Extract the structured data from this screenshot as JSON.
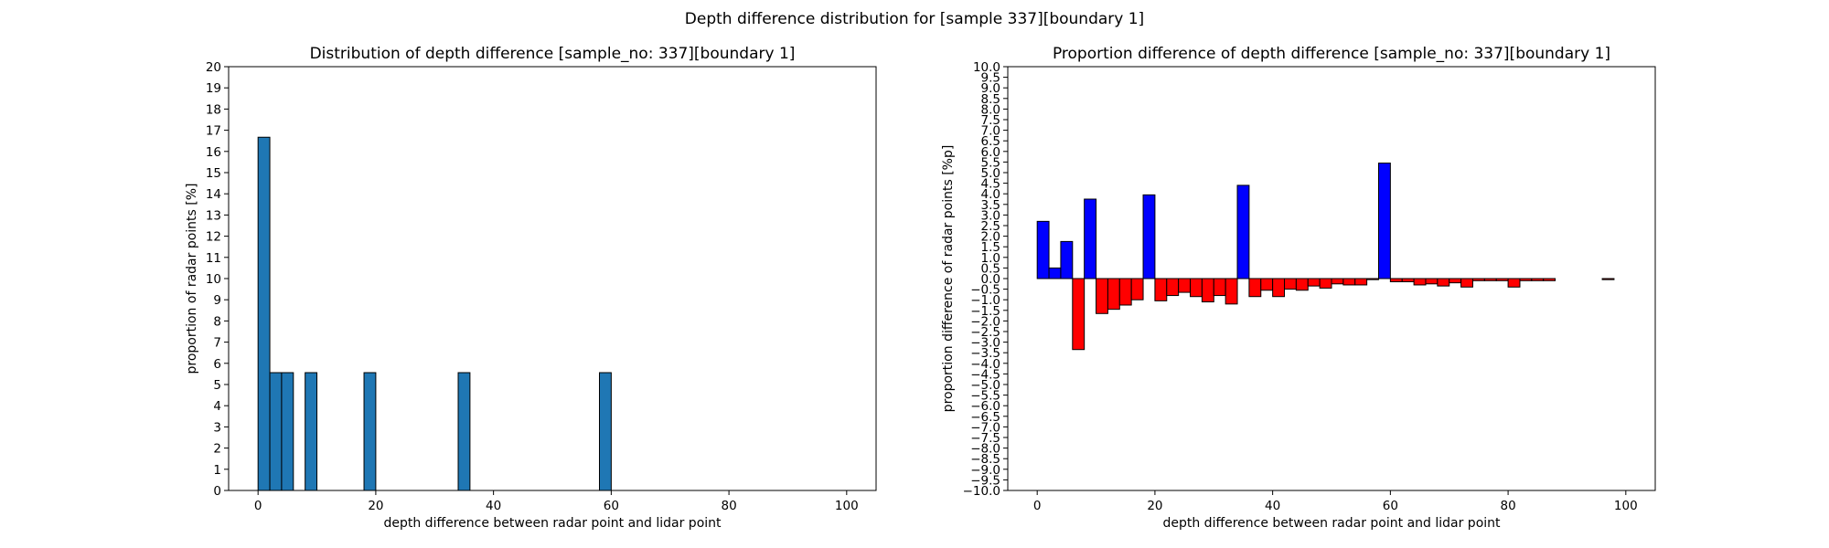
{
  "figure": {
    "suptitle": "Depth difference distribution for [sample 337][boundary 1]"
  },
  "chart_data": [
    {
      "type": "bar",
      "title": "Distribution of depth difference [sample_no: 337][boundary 1]",
      "xlabel": "depth difference between radar point and lidar point",
      "ylabel": "proportion of radar points [%]",
      "xlim": [
        -5,
        105
      ],
      "ylim": [
        0,
        20
      ],
      "x_ticks": [
        0,
        20,
        40,
        60,
        80,
        100
      ],
      "y_ticks": [
        0,
        1,
        2,
        3,
        4,
        5,
        6,
        7,
        8,
        9,
        10,
        11,
        12,
        13,
        14,
        15,
        16,
        17,
        18,
        19,
        20
      ],
      "bin_width": 2,
      "bins_start": [
        0,
        2,
        4,
        8,
        18,
        34,
        58
      ],
      "values": [
        16.67,
        5.56,
        5.56,
        5.56,
        5.56,
        5.56,
        5.56
      ],
      "color": "#1f77b4",
      "edge_color": "#000000",
      "grid": false
    },
    {
      "type": "bar",
      "title": "Proportion difference of depth difference [sample_no: 337][boundary 1]",
      "xlabel": "depth difference between radar point and lidar point",
      "ylabel": "proportion difference of radar points [%p]",
      "xlim": [
        -5,
        105
      ],
      "ylim": [
        -10,
        10
      ],
      "x_ticks": [
        0,
        20,
        40,
        60,
        80,
        100
      ],
      "y_ticks": [
        -10.0,
        -9.5,
        -9.0,
        -8.5,
        -8.0,
        -7.5,
        -7.0,
        -6.5,
        -6.0,
        -5.5,
        -5.0,
        -4.5,
        -4.0,
        -3.5,
        -3.0,
        -2.5,
        -2.0,
        -1.5,
        -1.0,
        -0.5,
        0.0,
        0.5,
        1.0,
        1.5,
        2.0,
        2.5,
        3.0,
        3.5,
        4.0,
        4.5,
        5.0,
        5.5,
        6.0,
        6.5,
        7.0,
        7.5,
        8.0,
        8.5,
        9.0,
        9.5,
        10.0
      ],
      "bin_width": 2,
      "bins_start": [
        0,
        2,
        4,
        6,
        8,
        10,
        12,
        14,
        16,
        18,
        20,
        22,
        24,
        26,
        28,
        30,
        32,
        34,
        36,
        38,
        40,
        42,
        44,
        46,
        48,
        50,
        52,
        54,
        56,
        58,
        60,
        62,
        64,
        66,
        68,
        70,
        72,
        74,
        76,
        78,
        80,
        82,
        84,
        86,
        88,
        90,
        92,
        94,
        96,
        98
      ],
      "values": [
        2.7,
        0.5,
        1.75,
        -3.35,
        3.75,
        -1.65,
        -1.45,
        -1.25,
        -1.0,
        3.95,
        -1.05,
        -0.8,
        -0.65,
        -0.85,
        -1.1,
        -0.8,
        -1.2,
        4.4,
        -0.85,
        -0.55,
        -0.85,
        -0.5,
        -0.55,
        -0.35,
        -0.45,
        -0.25,
        -0.3,
        -0.3,
        -0.05,
        5.45,
        -0.15,
        -0.15,
        -0.3,
        -0.25,
        -0.35,
        -0.2,
        -0.4,
        -0.1,
        -0.1,
        -0.1,
        -0.4,
        -0.1,
        -0.1,
        -0.1,
        0.0,
        0.0,
        0.0,
        0.0,
        -0.05,
        0.0
      ],
      "positive_color": "#0000ff",
      "negative_color": "#ff0000",
      "edge_color": "#000000",
      "grid": false
    }
  ]
}
